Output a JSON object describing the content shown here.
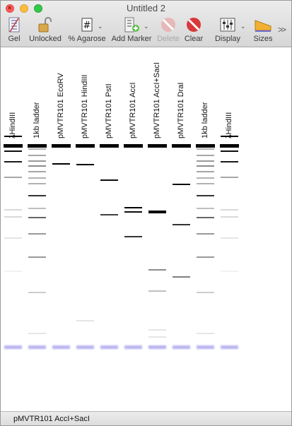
{
  "window": {
    "title": "Untitled 2"
  },
  "toolbar": {
    "items": [
      {
        "id": "gel",
        "label": "Gel",
        "icon": "gel-icon",
        "enabled": true
      },
      {
        "id": "lock",
        "label": "Unlocked",
        "icon": "unlocked-padlock-icon",
        "enabled": true
      },
      {
        "id": "agarose",
        "label": "% Agarose",
        "icon": "hash-icon",
        "enabled": true
      },
      {
        "id": "marker",
        "label": "Add Marker",
        "icon": "add-marker-icon",
        "enabled": true
      },
      {
        "id": "delete",
        "label": "Delete",
        "icon": "delete-icon",
        "enabled": false
      },
      {
        "id": "clear",
        "label": "Clear",
        "icon": "clear-icon",
        "enabled": true
      },
      {
        "id": "display",
        "label": "Display",
        "icon": "display-sliders-icon",
        "enabled": true
      },
      {
        "id": "sizes",
        "label": "Sizes",
        "icon": "sizes-ramp-icon",
        "enabled": true
      }
    ],
    "overflow_icon": "overflow-chevrons-icon"
  },
  "gel": {
    "lanes": [
      {
        "label": "λHindIII",
        "bands": [
          [
            191,
            1.0,
            2
          ],
          [
            212,
            0.95,
            2
          ],
          [
            227,
            0.9,
            2
          ],
          [
            249,
            0.35,
            2
          ],
          [
            295,
            0.15,
            2
          ],
          [
            305,
            0.15,
            2
          ],
          [
            335,
            0.1,
            2
          ],
          [
            382,
            0.05,
            2
          ]
        ]
      },
      {
        "label": "1kb ladder",
        "bands": [
          [
            209,
            0.3,
            2
          ],
          [
            218,
            0.35,
            2
          ],
          [
            226,
            0.4,
            2
          ],
          [
            233,
            0.45,
            2
          ],
          [
            241,
            0.35,
            2
          ],
          [
            250,
            0.3,
            2
          ],
          [
            258,
            0.3,
            2
          ],
          [
            275,
            0.8,
            2
          ],
          [
            293,
            0.25,
            2
          ],
          [
            306,
            0.6,
            2
          ],
          [
            329,
            0.4,
            2
          ],
          [
            362,
            0.4,
            2
          ],
          [
            412,
            0.2,
            2
          ],
          [
            470,
            0.1,
            2
          ]
        ]
      },
      {
        "label": "pMVTR101 EcoRV",
        "bands": [
          [
            230,
            1.0,
            2
          ]
        ]
      },
      {
        "label": "pMVTR101 HindIII",
        "bands": [
          [
            231,
            1.0,
            2
          ],
          [
            452,
            0.1,
            2
          ]
        ]
      },
      {
        "label": "pMVTR101 PstI",
        "bands": [
          [
            253,
            0.95,
            2
          ],
          [
            302,
            0.75,
            2
          ]
        ]
      },
      {
        "label": "pMVTR101 AccI",
        "bands": [
          [
            292,
            1.0,
            2
          ],
          [
            298,
            0.95,
            2
          ],
          [
            333,
            0.8,
            2
          ]
        ]
      },
      {
        "label": "pMVTR101 AccI+SacI",
        "bands": [
          [
            297,
            1.0,
            4
          ],
          [
            380,
            0.45,
            2
          ],
          [
            410,
            0.25,
            2
          ],
          [
            465,
            0.1,
            2
          ],
          [
            475,
            0.1,
            2
          ],
          [
            488,
            0.08,
            2
          ]
        ]
      },
      {
        "label": "pMVTR101 DraI",
        "bands": [
          [
            259,
            0.95,
            2
          ],
          [
            316,
            0.8,
            2
          ],
          [
            390,
            0.5,
            2
          ],
          [
            490,
            0.08,
            2
          ]
        ]
      },
      {
        "label": "1kb ladder",
        "bands": [
          [
            209,
            0.3,
            2
          ],
          [
            218,
            0.35,
            2
          ],
          [
            226,
            0.4,
            2
          ],
          [
            233,
            0.45,
            2
          ],
          [
            241,
            0.35,
            2
          ],
          [
            250,
            0.3,
            2
          ],
          [
            258,
            0.3,
            2
          ],
          [
            275,
            0.8,
            2
          ],
          [
            293,
            0.25,
            2
          ],
          [
            306,
            0.6,
            2
          ],
          [
            329,
            0.4,
            2
          ],
          [
            362,
            0.4,
            2
          ],
          [
            412,
            0.2,
            2
          ],
          [
            470,
            0.1,
            2
          ]
        ]
      },
      {
        "label": "λHindIII",
        "bands": [
          [
            191,
            1.0,
            2
          ],
          [
            212,
            0.95,
            2
          ],
          [
            227,
            0.9,
            2
          ],
          [
            249,
            0.35,
            2
          ],
          [
            295,
            0.15,
            2
          ],
          [
            305,
            0.15,
            2
          ],
          [
            335,
            0.1,
            2
          ],
          [
            382,
            0.05,
            2
          ]
        ]
      }
    ],
    "dye_front_color": "#b9b4f0",
    "band_color": "#000000"
  },
  "status": {
    "text": "pMVTR101 AccI+SacI"
  }
}
